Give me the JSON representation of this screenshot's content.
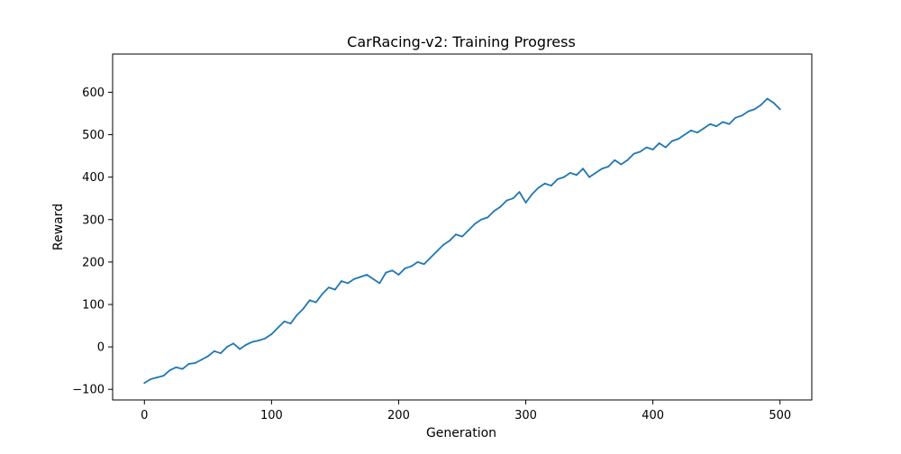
{
  "chart_data": {
    "type": "line",
    "title": "CarRacing-v2: Training Progress",
    "xlabel": "Generation",
    "ylabel": "Reward",
    "xlim": [
      -25,
      525
    ],
    "ylim": [
      -125,
      690
    ],
    "x_ticks": [
      0,
      100,
      200,
      300,
      400,
      500
    ],
    "y_ticks": [
      -100,
      0,
      100,
      200,
      300,
      400,
      500,
      600
    ],
    "grid": false,
    "legend": "none",
    "line_color": "#1f77b4",
    "x_start": 0,
    "x_step": 5,
    "series": [
      {
        "values": [
          -85,
          -76,
          -72,
          -68,
          -55,
          -48,
          -52,
          -40,
          -38,
          -30,
          -22,
          -10,
          -15,
          0,
          8,
          -5,
          5,
          12,
          15,
          20,
          30,
          45,
          60,
          55,
          75,
          90,
          110,
          105,
          125,
          140,
          135,
          155,
          150,
          160,
          165,
          170,
          160,
          150,
          175,
          180,
          170,
          185,
          190,
          200,
          195,
          210,
          225,
          240,
          250,
          265,
          260,
          275,
          290,
          300,
          305,
          320,
          330,
          345,
          350,
          365,
          340,
          360,
          375,
          385,
          380,
          395,
          400,
          410,
          405,
          420,
          400,
          410,
          420,
          425,
          440,
          430,
          440,
          455,
          460,
          470,
          465,
          480,
          470,
          485,
          490,
          500,
          510,
          505,
          515,
          525,
          520,
          530,
          525,
          540,
          545,
          555,
          560,
          570,
          585,
          575,
          560
        ]
      }
    ]
  }
}
